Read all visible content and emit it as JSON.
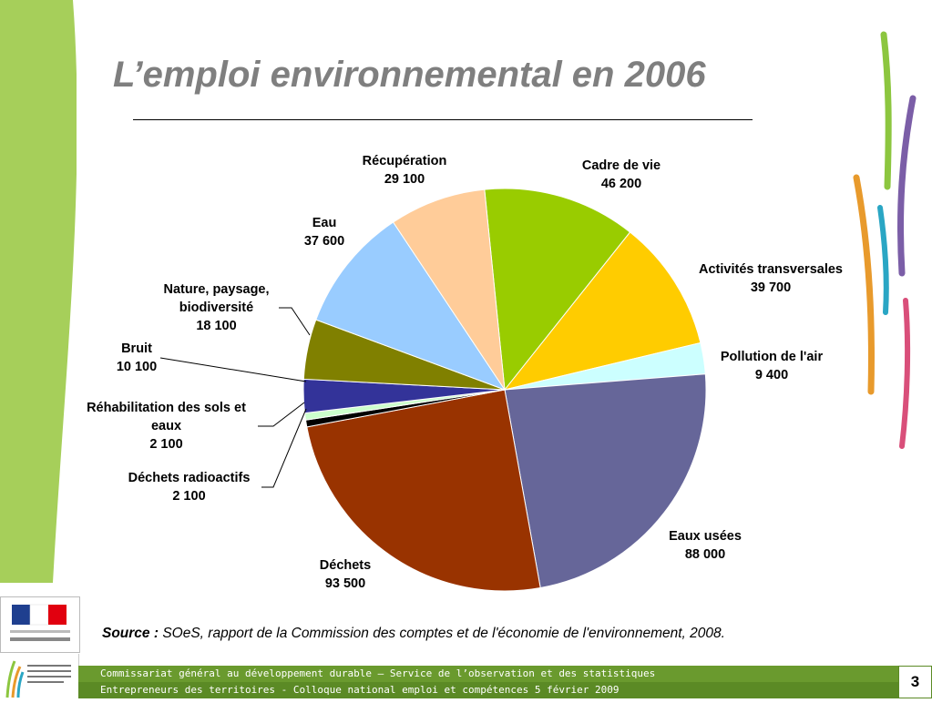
{
  "slide": {
    "title": "L’emploi environnemental en 2006",
    "source_prefix": "Source :",
    "source_text": " SOeS, rapport de la Commission des comptes et de l'économie de l'environnement, 2008.",
    "footer_line1": "Commissariat général au développement durable – Service de l’observation et des statistiques",
    "footer_line2": "Entrepreneurs des territoires - Colloque national emploi et compétences 5 février 2009",
    "page_number": "3"
  },
  "colors": {
    "left_band": "#a6cf5a",
    "title": "#7f7f7f"
  },
  "chart_data": {
    "type": "pie",
    "title": "",
    "start_angle_deg": 0,
    "direction": "clockwise",
    "slices": [
      {
        "label": "Cadre de vie",
        "value_text": "46 200",
        "value": 46200,
        "color": "#99cc00"
      },
      {
        "label": "Activités transversales",
        "value_text": "39 700",
        "value": 39700,
        "color": "#ffcc00"
      },
      {
        "label": "Pollution de l'air",
        "value_text": "9 400",
        "value": 9400,
        "color": "#ccffff"
      },
      {
        "label": "Eaux usées",
        "value_text": "88 000",
        "value": 88000,
        "color": "#666699"
      },
      {
        "label": "Déchets",
        "value_text": "93 500",
        "value": 93500,
        "color": "#993300"
      },
      {
        "label": "Déchets radioactifs",
        "value_text": "2 100",
        "value": 2100,
        "color": "#000000"
      },
      {
        "label": "Réhabilitation des sols et eaux",
        "value_text": "2 100",
        "value": 2100,
        "color": "#ccffcc"
      },
      {
        "label": "Bruit",
        "value_text": "10 100",
        "value": 10100,
        "color": "#333399"
      },
      {
        "label": "Nature, paysage, biodiversité",
        "value_text": "18 100",
        "value": 18100,
        "color": "#808000"
      },
      {
        "label": "Eau",
        "value_text": "37 600",
        "value": 37600,
        "color": "#99ccff"
      },
      {
        "label": "Récupération",
        "value_text": "29 100",
        "value": 29100,
        "color": "#ffcc99"
      }
    ]
  }
}
